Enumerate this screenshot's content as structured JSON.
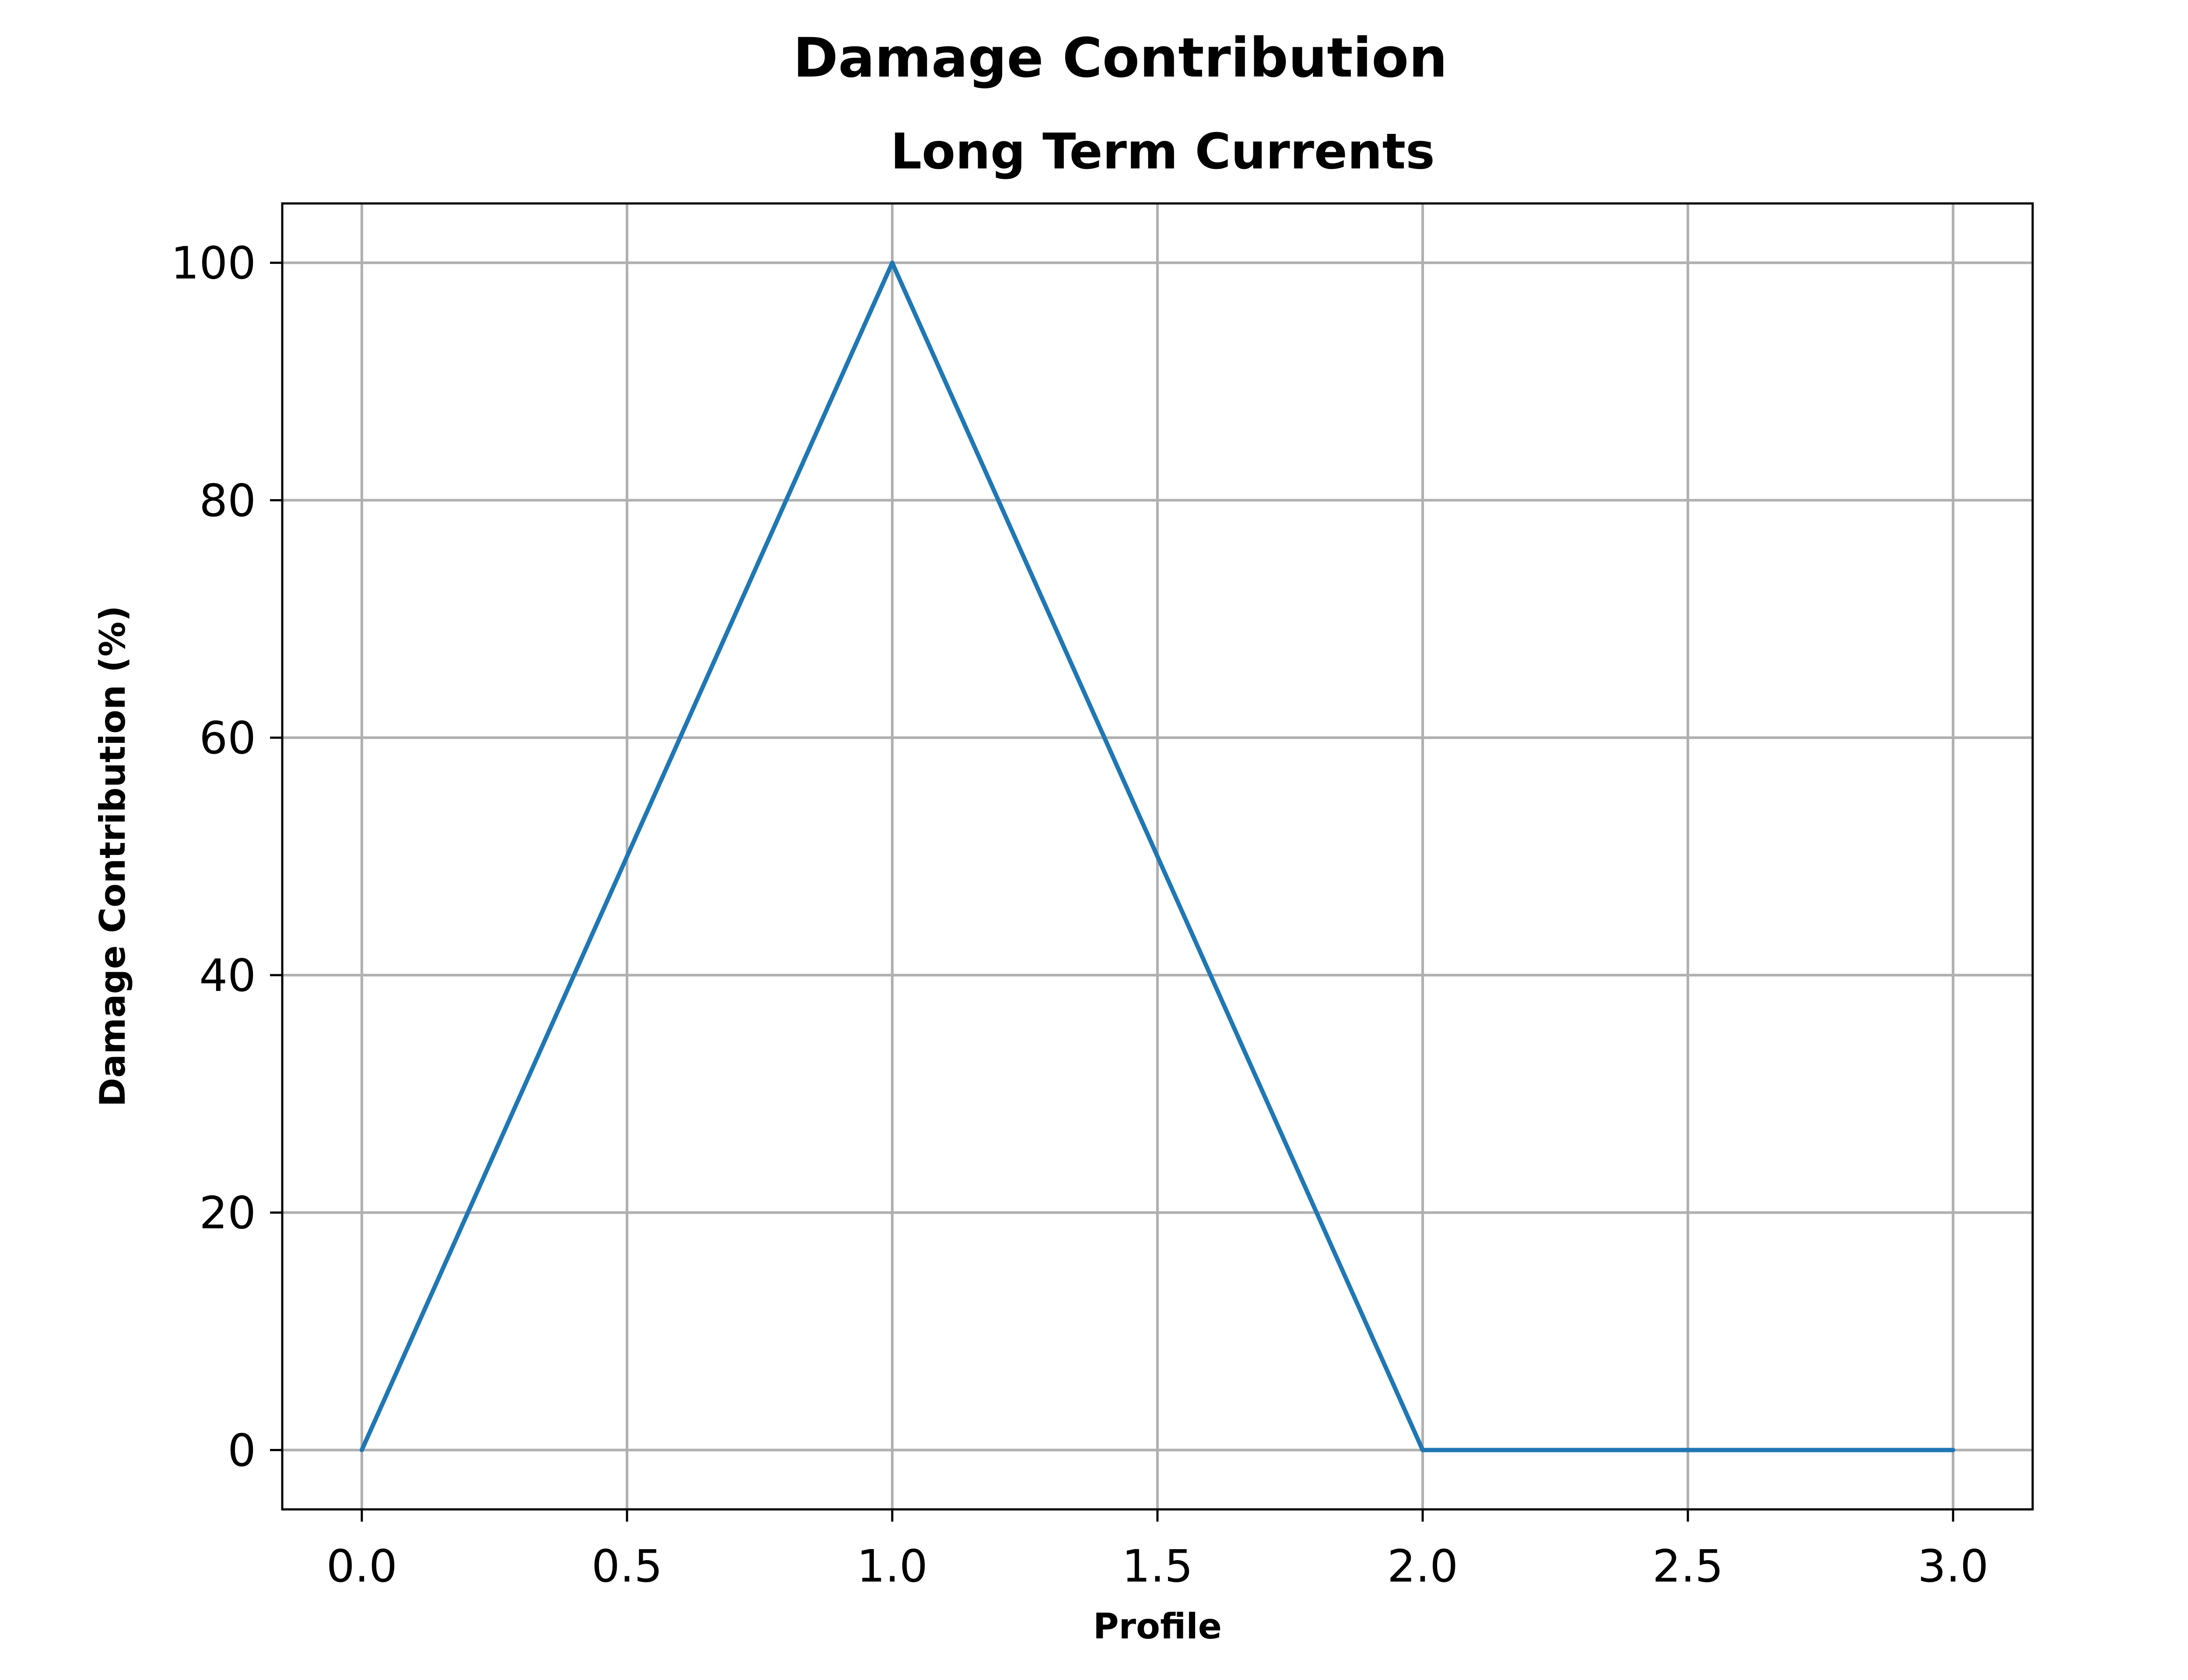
{
  "chart_data": {
    "type": "line",
    "title": "Damage Contribution",
    "subtitle": "Long Term Currents",
    "xlabel": "Profile",
    "ylabel": "Damage Contribution (%)",
    "xlim": [
      -0.15,
      3.15
    ],
    "ylim": [
      -5,
      105
    ],
    "xticks": [
      0,
      0.5,
      1,
      1.5,
      2,
      2.5,
      3
    ],
    "xtick_labels": [
      "0.0",
      "0.5",
      "1.0",
      "1.5",
      "2.0",
      "2.5",
      "3.0"
    ],
    "yticks": [
      0,
      20,
      40,
      60,
      80,
      100
    ],
    "ytick_labels": [
      "0",
      "20",
      "40",
      "60",
      "80",
      "100"
    ],
    "grid": true,
    "legend": "none",
    "series": [
      {
        "color": "#1f77b4",
        "x": [
          0,
          1,
          2,
          3
        ],
        "y": [
          0,
          100,
          0,
          0
        ]
      }
    ]
  }
}
